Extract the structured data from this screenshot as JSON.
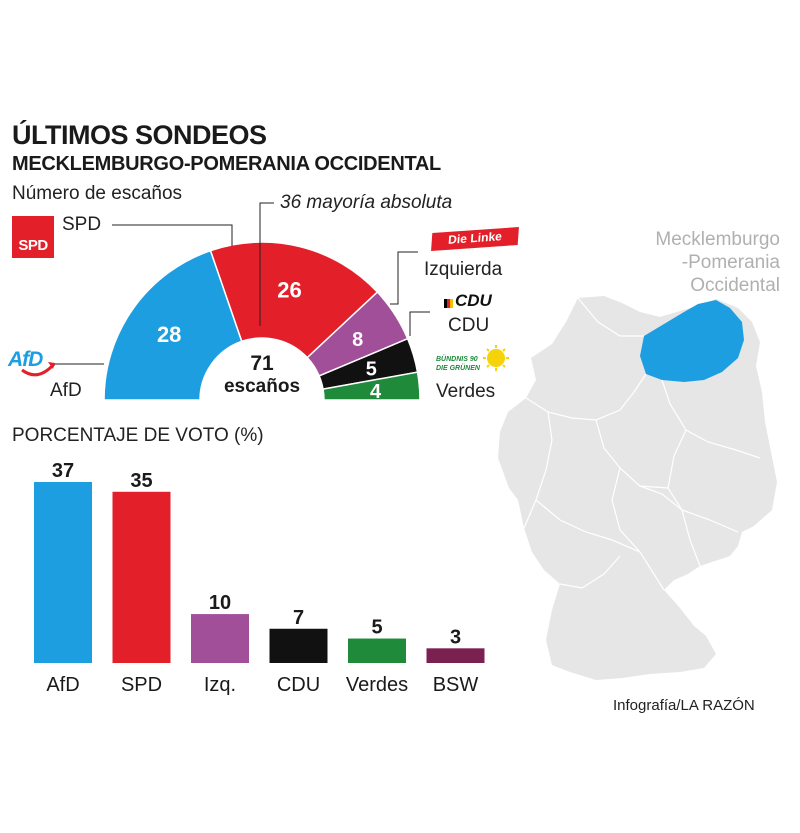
{
  "title": "ÚLTIMOS SONDEOS",
  "subtitle": "MECKLEMBURGO-POMERANIA OCCIDENTAL",
  "seats_label": "Número de escaños",
  "majority_label": "36 mayoría absoluta",
  "center_total": "71",
  "center_unit": "escaños",
  "votes_label": "PORCENTAJE DE VOTO (%)",
  "credit": "Infografía/LA RAZÓN",
  "map_label": [
    "Mecklemburgo",
    "-Pomerania",
    "Occidental"
  ],
  "logos": {
    "spd": "SPD",
    "afd": "AfD",
    "linke": "Die Linke",
    "cdu": "CDU",
    "gruene_line1": "BÜNDNIS 90",
    "gruene_line2": "DIE GRÜNEN"
  },
  "colors": {
    "AfD": "#1d9ee0",
    "SPD": "#e3202a",
    "Izquierda": "#a24f9a",
    "CDU": "#111111",
    "Verdes": "#1e8a3a",
    "BSW": "#7a2150",
    "map_land": "#e6e6e6",
    "map_highlight": "#1d9ee0"
  },
  "chart_data": [
    {
      "type": "pie",
      "variant": "half-donut parliament",
      "title": "Número de escaños",
      "total": 71,
      "majority": 36,
      "slices": [
        {
          "label": "AfD",
          "value": 28
        },
        {
          "label": "SPD",
          "value": 26
        },
        {
          "label": "Izquierda",
          "value": 8
        },
        {
          "label": "CDU",
          "value": 5
        },
        {
          "label": "Verdes",
          "value": 4
        }
      ]
    },
    {
      "type": "bar",
      "title": "PORCENTAJE DE VOTO (%)",
      "categories": [
        "AfD",
        "SPD",
        "Izq.",
        "CDU",
        "Verdes",
        "BSW"
      ],
      "values": [
        37,
        35,
        10,
        7,
        5,
        3
      ],
      "colors": [
        "#1d9ee0",
        "#e3202a",
        "#a24f9a",
        "#111111",
        "#1e8a3a",
        "#7a2150"
      ],
      "ylim": [
        0,
        37
      ]
    }
  ]
}
